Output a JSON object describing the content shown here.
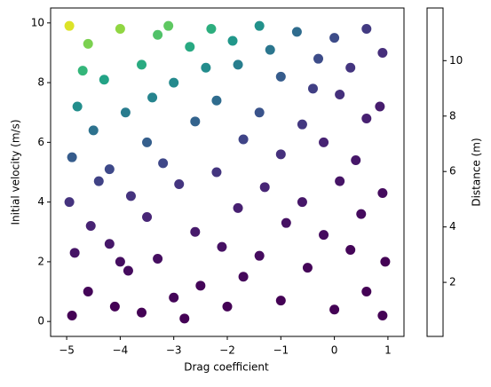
{
  "chart_data": {
    "type": "scatter",
    "xlabel": "Drag coefficient",
    "ylabel": "Initial velocity (m/s)",
    "colorbar_label": "Distance (m)",
    "colormap": "viridis",
    "x": [
      -4.95,
      -4.8,
      -4.9,
      -4.95,
      -4.85,
      -4.9,
      -4.6,
      -4.5,
      -4.55,
      -4.6,
      -4.3,
      -4.2,
      -4.2,
      -4.1,
      -4.0,
      -3.9,
      -3.8,
      -3.85,
      -3.6,
      -3.5,
      -3.5,
      -3.6,
      -3.3,
      -3.2,
      -3.3,
      -3.0,
      -2.9,
      -3.0,
      -2.7,
      -2.6,
      -2.6,
      -2.5,
      -2.3,
      -2.2,
      -2.2,
      -2.1,
      -2.0,
      -1.8,
      -1.7,
      -1.8,
      -1.7,
      -1.4,
      -1.4,
      -1.3,
      -1.4,
      -1.0,
      -1.0,
      -0.9,
      -1.0,
      -0.7,
      -0.6,
      -0.6,
      -0.5,
      -0.3,
      -0.2,
      -0.2,
      0.0,
      0.1,
      0.1,
      0.0,
      0.3,
      0.4,
      0.3,
      0.6,
      0.6,
      0.5,
      0.6,
      0.9,
      0.85,
      0.9,
      0.95,
      0.9,
      -4.7,
      -3.1,
      -1.9,
      -2.4,
      -4.4,
      -3.4,
      -1.2,
      -0.4,
      -4.0,
      -2.8
    ],
    "y": [
      9.9,
      7.2,
      5.5,
      4.0,
      2.3,
      0.2,
      9.3,
      6.4,
      3.2,
      1.0,
      8.1,
      5.1,
      2.6,
      0.5,
      9.8,
      7.0,
      4.2,
      1.7,
      8.6,
      6.0,
      3.5,
      0.3,
      9.6,
      5.3,
      2.1,
      8.0,
      4.6,
      0.8,
      9.2,
      6.7,
      3.0,
      1.2,
      9.8,
      7.4,
      5.0,
      2.5,
      0.5,
      8.6,
      6.1,
      3.8,
      1.5,
      9.9,
      7.0,
      4.5,
      2.2,
      8.2,
      5.6,
      3.3,
      0.7,
      9.7,
      6.6,
      4.0,
      1.8,
      8.8,
      6.0,
      2.9,
      9.5,
      7.6,
      4.7,
      0.4,
      8.5,
      5.4,
      2.4,
      9.8,
      6.8,
      3.6,
      1.0,
      9.0,
      7.2,
      4.3,
      2.0,
      0.2,
      8.4,
      9.9,
      9.4,
      8.5,
      4.7,
      7.5,
      9.1,
      7.8,
      2.0,
      0.1
    ],
    "c": [
      11.3,
      5.9,
      3.5,
      1.8,
      0.7,
      0.1,
      9.5,
      4.5,
      1.2,
      0.2,
      6.9,
      2.7,
      0.8,
      0.1,
      9.9,
      5.0,
      1.8,
      0.4,
      7.3,
      3.6,
      1.3,
      0.1,
      8.6,
      2.6,
      0.5,
      5.7,
      1.9,
      0.2,
      7.2,
      3.8,
      0.9,
      0.2,
      7.5,
      4.2,
      1.9,
      0.6,
      0.1,
      5.1,
      2.5,
      1.1,
      0.3,
      6.0,
      3.1,
      1.3,
      0.4,
      3.5,
      1.7,
      0.6,
      0.1,
      4.2,
      2.0,
      0.8,
      0.2,
      2.8,
      1.2,
      0.4,
      2.8,
      1.7,
      0.7,
      0.1,
      1.9,
      0.8,
      0.2,
      2.1,
      1.1,
      0.4,
      0.1,
      1.6,
      1.0,
      0.4,
      0.1,
      0.1,
      7.9,
      8.9,
      6.3,
      5.8,
      2.4,
      5.4,
      4.7,
      2.3,
      0.5,
      0.1
    ],
    "xlim": [
      -5.3,
      1.3
    ],
    "ylim": [
      -0.5,
      10.5
    ],
    "xticks": [
      {
        "value": -5,
        "label": "−5"
      },
      {
        "value": -4,
        "label": "−4"
      },
      {
        "value": -3,
        "label": "−3"
      },
      {
        "value": -2,
        "label": "−2"
      },
      {
        "value": -1,
        "label": "−1"
      },
      0,
      1
    ],
    "yticks": [
      0,
      2,
      4,
      6,
      8,
      10
    ],
    "clim": [
      0.05,
      11.9
    ],
    "cticks": [
      2,
      4,
      6,
      8,
      10
    ]
  }
}
